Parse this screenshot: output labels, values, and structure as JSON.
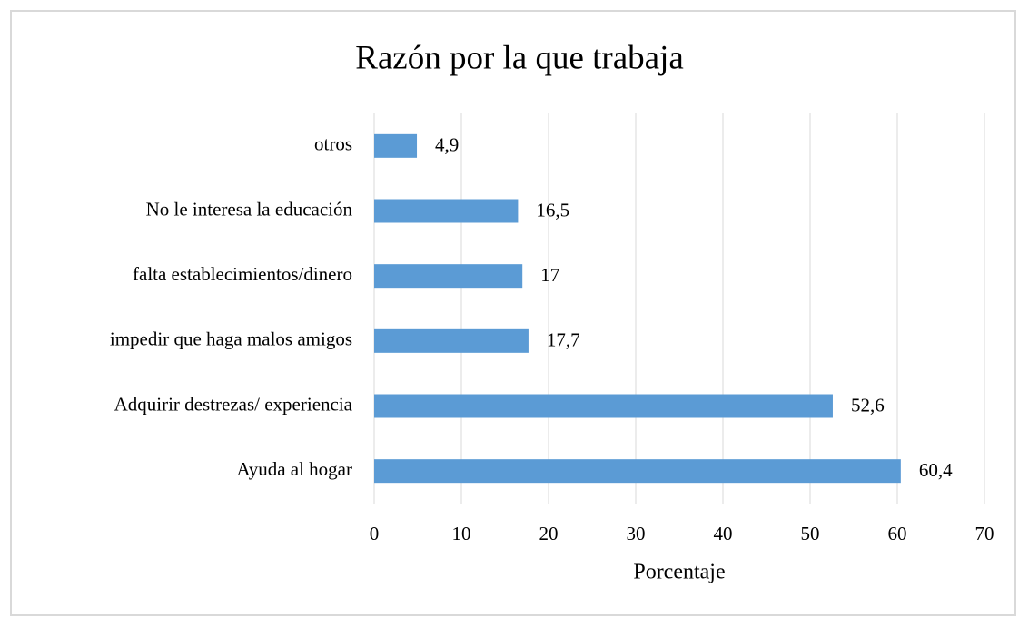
{
  "chart_data": {
    "type": "bar",
    "orientation": "horizontal",
    "title": "Razón por la que trabaja",
    "x_label": "Porcentaje",
    "categories": [
      "otros",
      "No le interesa la educación",
      "falta establecimientos/dinero",
      "impedir que haga malos amigos",
      "Adquirir destrezas/ experiencia",
      "Ayuda al hogar"
    ],
    "values": [
      4.9,
      16.5,
      17,
      17.7,
      52.6,
      60.4
    ],
    "value_labels": [
      "4,9",
      "16,5",
      "17",
      "17,7",
      "52,6",
      "60,4"
    ],
    "color": "#5b9bd5",
    "xlim": [
      0,
      70
    ],
    "xticks": [
      0,
      10,
      20,
      30,
      40,
      50,
      60,
      70
    ],
    "grid": true
  }
}
